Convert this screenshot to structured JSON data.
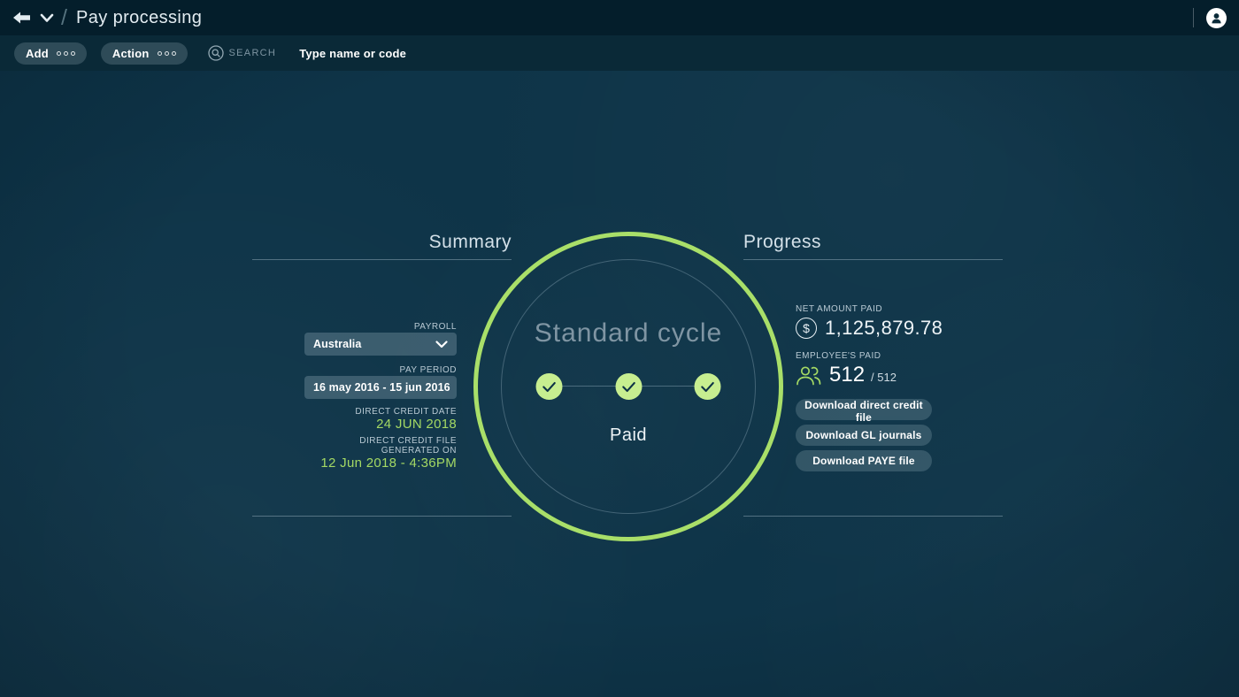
{
  "header": {
    "title": "Pay processing"
  },
  "toolbar": {
    "add_label": "Add",
    "action_label": "Action",
    "search_label": "SEARCH",
    "search_placeholder": "Type name or code"
  },
  "summary": {
    "title": "Summary",
    "payroll_label": "PAYROLL",
    "payroll_value": "Australia",
    "pay_period_label": "PAY PERIOD",
    "pay_period_value": "16 may 2016 - 15 jun 2016",
    "direct_credit_date_label": "DIRECT CREDIT DATE",
    "direct_credit_date_value": "24 JUN 2018",
    "file_generated_label": "DIRECT CREDIT FILE GENERATED ON",
    "file_generated_value": "12 Jun 2018 - 4:36PM"
  },
  "cycle": {
    "title": "Standard cycle",
    "status": "Paid",
    "steps": [
      "complete",
      "complete",
      "complete"
    ]
  },
  "progress": {
    "title": "Progress",
    "net_amount_label": "NET AMOUNT PAID",
    "net_amount_value": "1,125,879.78",
    "currency_symbol": "$",
    "employees_label": "EMPLOYEE'S PAID",
    "employees_paid": "512",
    "employees_total": "/ 512",
    "buttons": [
      "Download direct credit file",
      "Download GL journals",
      "Download PAYE file"
    ]
  },
  "colors": {
    "background": "#0e3448",
    "topbar": "#041e2b",
    "toolbar": "#0a2937",
    "accent_ring_green": "#a9df69",
    "check_circle_green": "#c7ee90",
    "value_green": "#a4d964"
  }
}
